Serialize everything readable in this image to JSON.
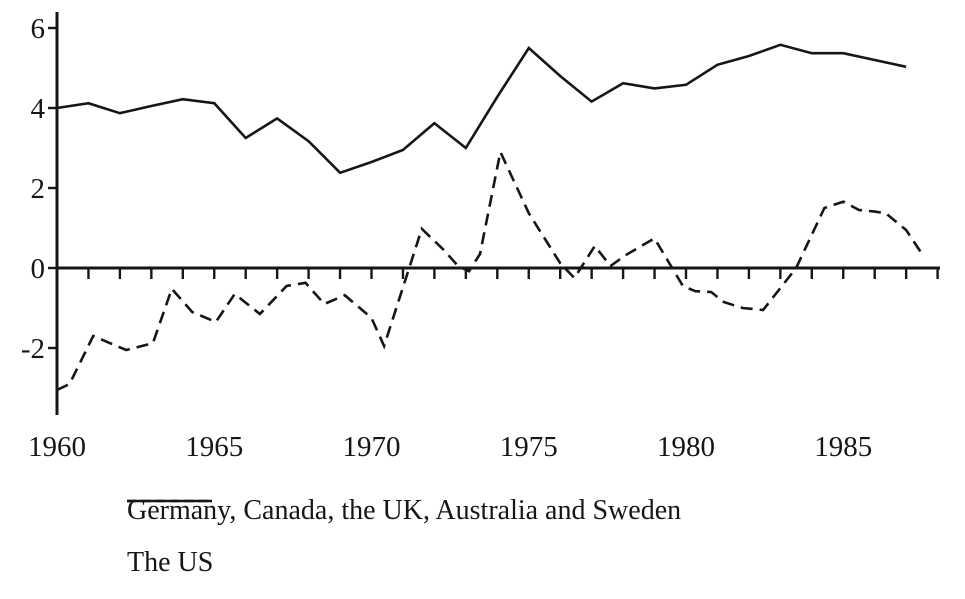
{
  "figure": {
    "background": "#ffffff",
    "ink_color": "#161616"
  },
  "legend": {
    "items": [
      {
        "label": "Germany, Canada, the UK, Australia and Sweden",
        "line_style": "solid"
      },
      {
        "label": "The US",
        "line_style": "dashed"
      }
    ]
  },
  "chart_data": {
    "type": "line",
    "title": "",
    "xlabel": "",
    "ylabel": "",
    "x_range": [
      1960,
      1988
    ],
    "y_range": [
      -3.7,
      6.3
    ],
    "y_ticks": [
      6,
      4,
      2,
      0,
      -2
    ],
    "x_labeled_ticks": [
      1960,
      1965,
      1970,
      1975,
      1980,
      1985
    ],
    "x_minor_tick_interval": 1,
    "grid": false,
    "legend_position": "below",
    "series": [
      {
        "name": "Germany, Canada, the UK, Australia and Sweden",
        "style": "solid",
        "points": [
          [
            1960,
            4.0
          ],
          [
            1961,
            4.12
          ],
          [
            1962,
            3.87
          ],
          [
            1963,
            4.05
          ],
          [
            1964,
            4.22
          ],
          [
            1965,
            4.12
          ],
          [
            1966,
            3.25
          ],
          [
            1967,
            3.74
          ],
          [
            1968,
            3.17
          ],
          [
            1969,
            2.38
          ],
          [
            1970,
            2.65
          ],
          [
            1971,
            2.95
          ],
          [
            1972,
            3.62
          ],
          [
            1973,
            3.0
          ],
          [
            1974,
            4.28
          ],
          [
            1975,
            5.5
          ],
          [
            1976,
            4.8
          ],
          [
            1977,
            4.16
          ],
          [
            1978,
            4.62
          ],
          [
            1979,
            4.49
          ],
          [
            1980,
            4.58
          ],
          [
            1981,
            5.08
          ],
          [
            1982,
            5.3
          ],
          [
            1983,
            5.58
          ],
          [
            1984,
            5.37
          ],
          [
            1985,
            5.37
          ],
          [
            1986,
            5.2
          ],
          [
            1987,
            5.03
          ]
        ]
      },
      {
        "name": "The US",
        "style": "dashed",
        "points": [
          [
            1960,
            -3.05
          ],
          [
            1960.4,
            -2.9
          ],
          [
            1961.15,
            -1.7
          ],
          [
            1962.2,
            -2.05
          ],
          [
            1963.05,
            -1.88
          ],
          [
            1963.65,
            -0.52
          ],
          [
            1964.3,
            -1.1
          ],
          [
            1965.05,
            -1.35
          ],
          [
            1965.65,
            -0.65
          ],
          [
            1966.45,
            -1.15
          ],
          [
            1967.3,
            -0.45
          ],
          [
            1967.9,
            -0.37
          ],
          [
            1968.5,
            -0.9
          ],
          [
            1969.15,
            -0.68
          ],
          [
            1970,
            -1.25
          ],
          [
            1970.4,
            -1.95
          ],
          [
            1971.6,
            0.98
          ],
          [
            1972.3,
            0.45
          ],
          [
            1972.75,
            0.05
          ],
          [
            1973.1,
            -0.08
          ],
          [
            1973.45,
            0.35
          ],
          [
            1974.1,
            2.9
          ],
          [
            1975,
            1.37
          ],
          [
            1976,
            0.12
          ],
          [
            1976.45,
            -0.25
          ],
          [
            1977.1,
            0.55
          ],
          [
            1977.6,
            0.05
          ],
          [
            1978.1,
            0.33
          ],
          [
            1979,
            0.74
          ],
          [
            1979.9,
            -0.45
          ],
          [
            1980.3,
            -0.58
          ],
          [
            1980.8,
            -0.6
          ],
          [
            1981.2,
            -0.85
          ],
          [
            1981.8,
            -1.0
          ],
          [
            1982.45,
            -1.05
          ],
          [
            1983.5,
            0.0
          ],
          [
            1984.4,
            1.5
          ],
          [
            1985,
            1.66
          ],
          [
            1985.5,
            1.45
          ],
          [
            1986,
            1.41
          ],
          [
            1986.35,
            1.37
          ],
          [
            1987,
            0.95
          ],
          [
            1987.55,
            0.3
          ]
        ]
      }
    ]
  }
}
